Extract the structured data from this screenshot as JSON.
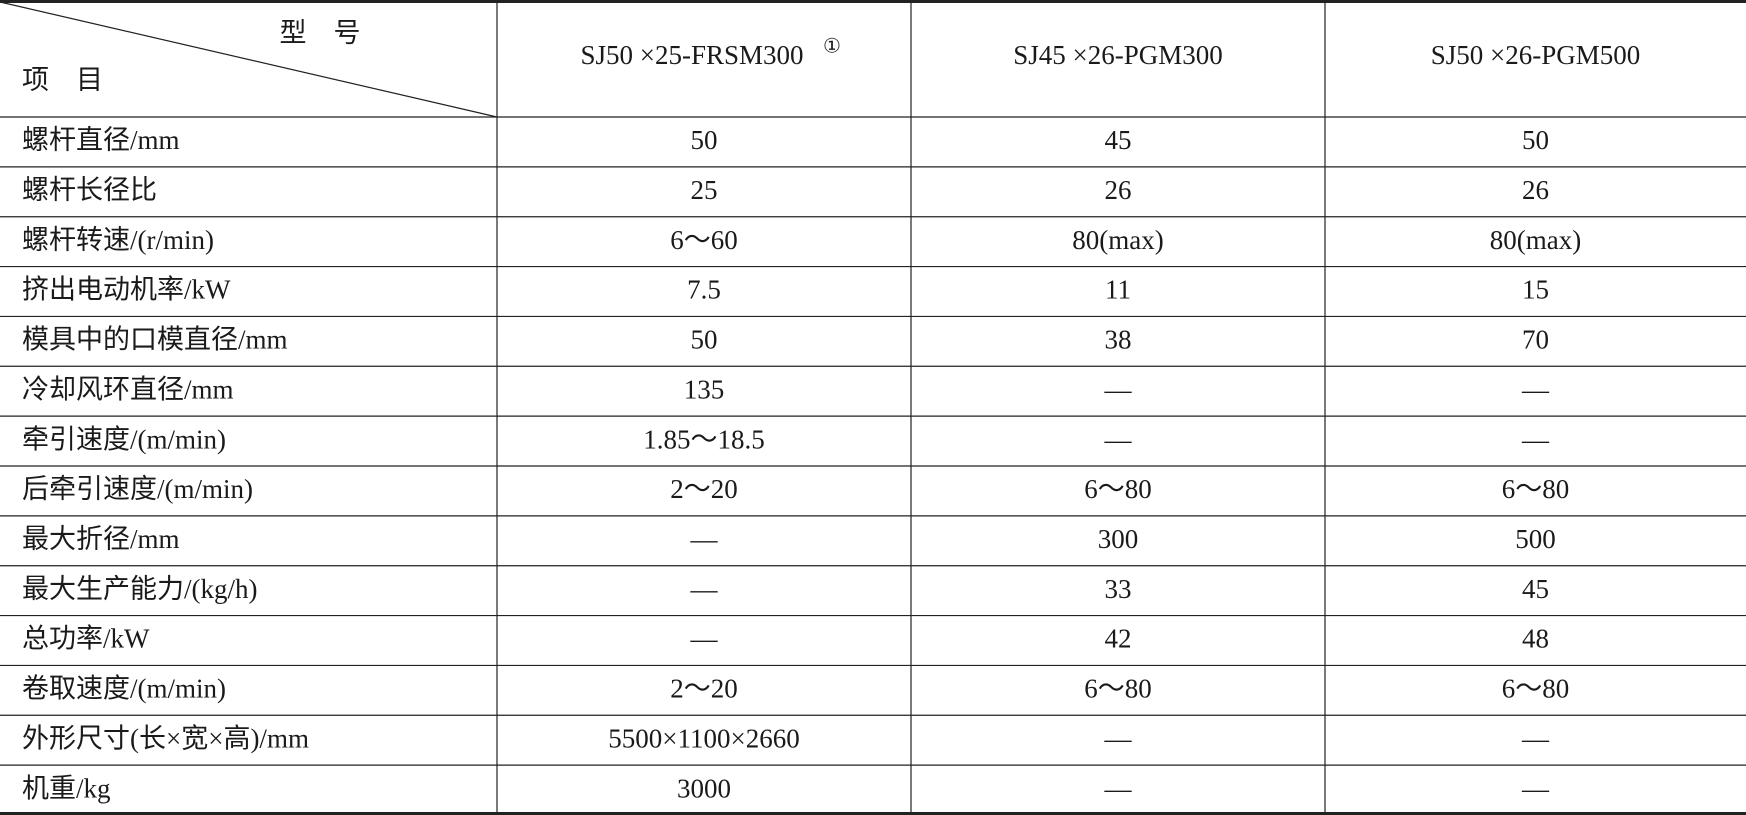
{
  "table": {
    "corner": {
      "top": "型　号",
      "bottom": "项　目"
    },
    "columns": [
      "SJ50 ×25-FRSM300",
      "SJ45 ×26-PGM300",
      "SJ50 ×26-PGM500"
    ],
    "column_note": "①",
    "rows": [
      [
        "螺杆直径/mm",
        "50",
        "45",
        "50"
      ],
      [
        "螺杆长径比",
        "25",
        "26",
        "26"
      ],
      [
        "螺杆转速/(r/min)",
        "6～60",
        "80(max)",
        "80(max)"
      ],
      [
        "挤出电动机率/kW",
        "7.5",
        "11",
        "15"
      ],
      [
        "模具中的口模直径/mm",
        "50",
        "38",
        "70"
      ],
      [
        "冷却风环直径/mm",
        "135",
        "—",
        "—"
      ],
      [
        "牵引速度/(m/min)",
        "1.85～18.5",
        "—",
        "—"
      ],
      [
        "后牵引速度/(m/min)",
        "2～20",
        "6～80",
        "6～80"
      ],
      [
        "最大折径/mm",
        "—",
        "300",
        "500"
      ],
      [
        "最大生产能力/(kg/h)",
        "—",
        "33",
        "45"
      ],
      [
        "总功率/kW",
        "—",
        "42",
        "48"
      ],
      [
        "卷取速度/(m/min)",
        "2～20",
        "6～80",
        "6～80"
      ],
      [
        "外形尺寸(长×宽×高)/mm",
        "5500×1100×2660",
        "—",
        "—"
      ],
      [
        "机重/kg",
        "3000",
        "—",
        "—"
      ]
    ]
  }
}
